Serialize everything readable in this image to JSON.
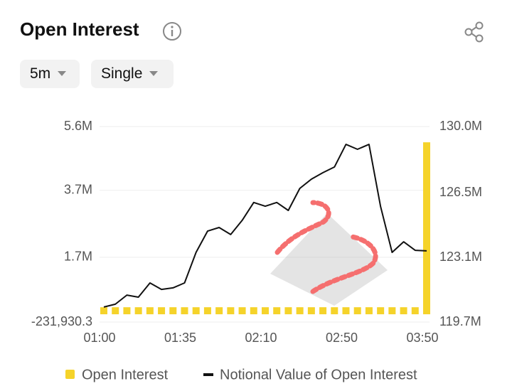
{
  "header": {
    "title": "Open Interest",
    "interval": "5m",
    "mode": "Single"
  },
  "chart_data": {
    "type": "bar-line",
    "categories": [
      "01:00",
      null,
      null,
      null,
      null,
      null,
      null,
      "01:35",
      null,
      null,
      null,
      null,
      null,
      null,
      "02:10",
      null,
      null,
      null,
      null,
      null,
      null,
      "02:50",
      null,
      null,
      null,
      null,
      null,
      null,
      "03:50"
    ],
    "series": [
      {
        "name": "Open Interest",
        "color": "#f5d32a",
        "type": "bar",
        "axis": "y",
        "values": [
          210000,
          210000,
          210000,
          210000,
          210000,
          210000,
          210000,
          210000,
          210000,
          210000,
          210000,
          210000,
          210000,
          210000,
          210000,
          210000,
          210000,
          210000,
          210000,
          210000,
          210000,
          210000,
          210000,
          210000,
          210000,
          210000,
          210000,
          210000,
          5130000
        ]
      },
      {
        "name": "Notional Value of Open Interest",
        "color": "#111111",
        "type": "line",
        "axis": "y2",
        "values": [
          120490000,
          120640000,
          121120000,
          121010000,
          121760000,
          121420000,
          121500000,
          121760000,
          123370000,
          124490000,
          124680000,
          124310000,
          125060000,
          126000000,
          125800000,
          126000000,
          125580000,
          126740000,
          127230000,
          127570000,
          127870000,
          129060000,
          128800000,
          129060000,
          125800000,
          123370000,
          123930000,
          123480000,
          123450000
        ]
      }
    ],
    "ylim": [
      -231930.3,
      5600000
    ],
    "yticks": [
      {
        "value": -231930.3,
        "label": "-231,930.3"
      },
      {
        "value": 1700000,
        "label": "1.7M"
      },
      {
        "value": 3700000,
        "label": "3.7M"
      },
      {
        "value": 5600000,
        "label": "5.6M"
      }
    ],
    "y2lim": [
      119700000,
      130000000
    ],
    "y2ticks": [
      {
        "value": 119700000,
        "label": "119.7M"
      },
      {
        "value": 123100000,
        "label": "123.1M"
      },
      {
        "value": 126500000,
        "label": "126.5M"
      },
      {
        "value": 130000000,
        "label": "130.0M"
      }
    ],
    "grid": true
  }
}
